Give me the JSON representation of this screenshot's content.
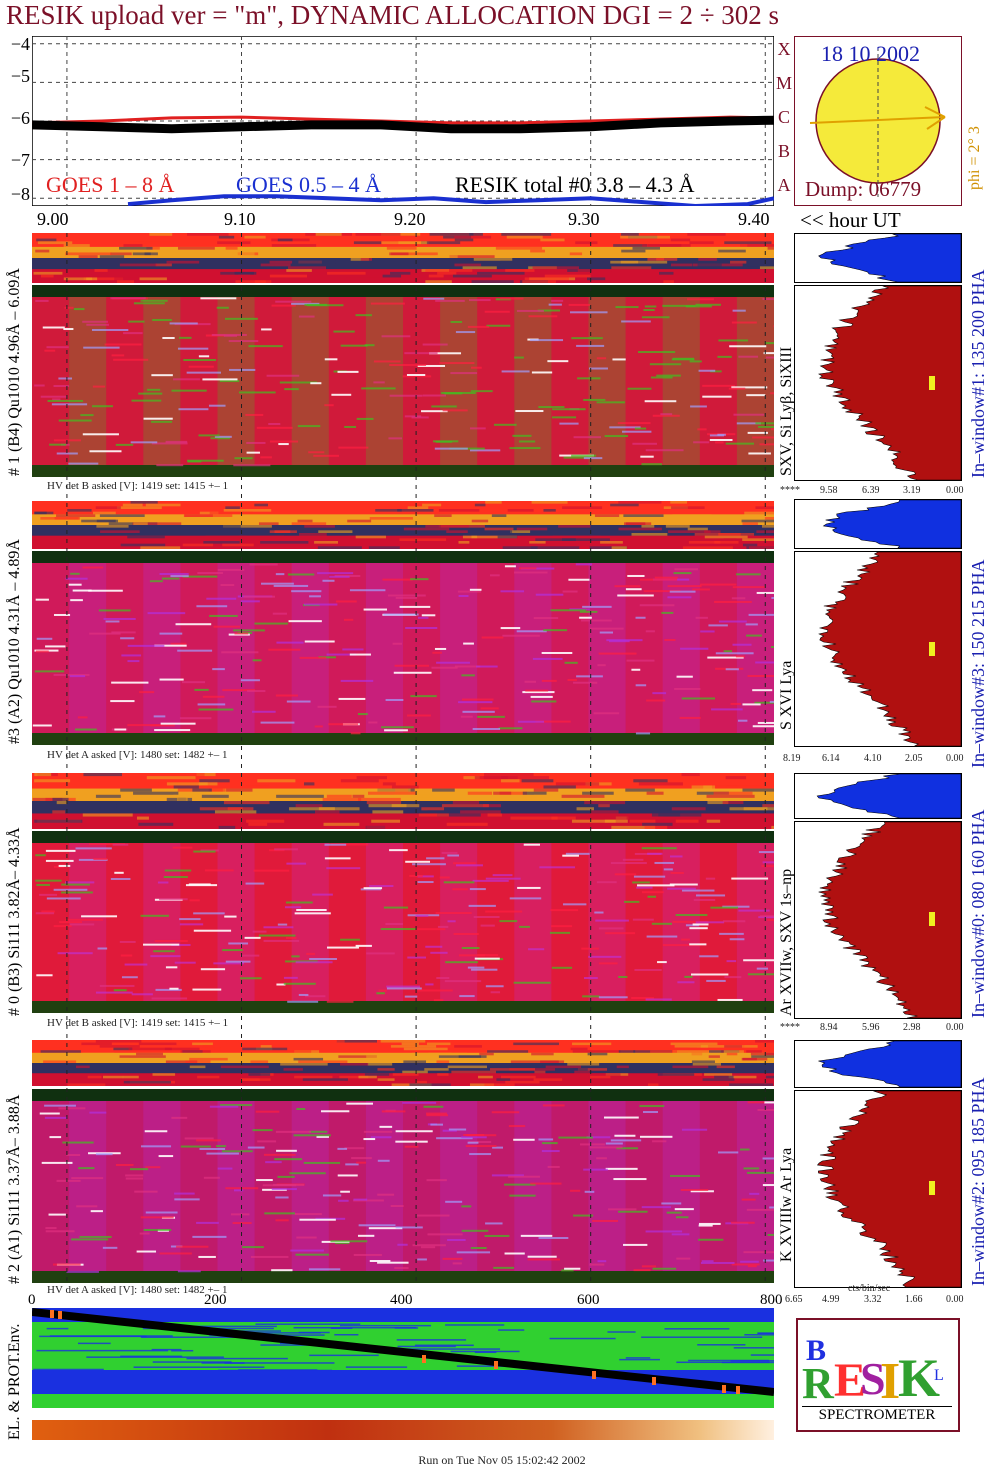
{
  "title": "RESIK upload ver = \"m\", DYNAMIC ALLOCATION  DGI =   2 ÷ 302 s",
  "sun_panel": {
    "date": "18 10 2002",
    "dump": "Dump: 06779",
    "phi": "phi =  2°  3",
    "side_letters": [
      "A",
      "B",
      "C",
      "M",
      "X"
    ],
    "colors": {
      "disk": "#f5ea3a",
      "border": "#7b1028",
      "arrow": "#e0a000"
    }
  },
  "lightcurve": {
    "legend": [
      "GOES 1 – 8 Å",
      "GOES 0.5 – 4 Å",
      "RESIK total #0  3.8 – 4.3 Å"
    ],
    "hour_label": "<< hour UT"
  },
  "chart_data": [
    {
      "type": "line",
      "title": "",
      "ylabel": "",
      "xlabel": "<< hour UT",
      "xlim": [
        8.98,
        9.405
      ],
      "ylim": [
        -8.2,
        -3.8
      ],
      "yticks": [
        "−4",
        "−5",
        "−6",
        "−7",
        "−8"
      ],
      "xticks": [
        "9.00",
        "9.10",
        "9.20",
        "9.30",
        "9.40"
      ],
      "xtick_values": [
        9.0,
        9.1,
        9.2,
        9.3,
        9.4
      ],
      "grid": true,
      "series": [
        {
          "name": "GOES 1 – 8 Å",
          "color": "#e02020",
          "x": [
            8.98,
            9.02,
            9.06,
            9.1,
            9.14,
            9.18,
            9.22,
            9.26,
            9.3,
            9.34,
            9.38,
            9.405
          ],
          "y": [
            -6.05,
            -6.0,
            -5.92,
            -5.9,
            -5.95,
            -6.0,
            -6.05,
            -6.05,
            -6.0,
            -5.95,
            -5.9,
            -5.92
          ]
        },
        {
          "name": "GOES 0.5 – 4 Å",
          "color": "#1a30d0",
          "x": [
            9.035,
            9.06,
            9.09,
            9.12,
            9.15,
            9.18,
            9.21,
            9.24,
            9.27,
            9.3,
            9.33,
            9.36,
            9.39,
            9.405
          ],
          "y": [
            -8.15,
            -8.05,
            -7.95,
            -7.95,
            -8.0,
            -8.05,
            -8.0,
            -8.1,
            -8.05,
            -8.0,
            -8.1,
            -8.2,
            -8.15,
            -8.0
          ]
        },
        {
          "name": "RESIK total #0  3.8 – 4.3 Å",
          "color": "#000000",
          "x": [
            8.98,
            9.02,
            9.06,
            9.1,
            9.14,
            9.18,
            9.22,
            9.26,
            9.3,
            9.34,
            9.38,
            9.405
          ],
          "y": [
            -6.1,
            -6.15,
            -6.2,
            -6.15,
            -6.1,
            -6.1,
            -6.2,
            -6.2,
            -6.15,
            -6.05,
            -6.0,
            -5.98
          ]
        }
      ]
    },
    {
      "type": "heatmap",
      "name": "detector #1",
      "label": "# 1 (B4) Qu1010 4.96Å – 6.09Å",
      "lines": "SXV, Si Lyβ, SiXIII",
      "window": "In–window#1:  135 200 PHA",
      "hv": "HV det B asked [V]:  1419 set:  1415  +–    1",
      "hist_ticks": [
        "****",
        "9.58",
        "6.39",
        "3.19",
        "0.00"
      ],
      "base_color": "#d01a3a",
      "accent_color": "#40c020"
    },
    {
      "type": "heatmap",
      "name": "detector #3",
      "label": "#3 (A2) Qu1010  4.31Å – 4.89Å",
      "lines": "S XVI Lya",
      "window": "In–window#3:  150 215 PHA",
      "hv": "HV det A asked [V]:  1480 set:  1482  +–    1",
      "hist_ticks": [
        "8.19",
        "6.14",
        "4.10",
        "2.05",
        "0.00"
      ],
      "base_color": "#d01a5a",
      "accent_color": "#b030e0"
    },
    {
      "type": "heatmap",
      "name": "detector #0",
      "label": "# 0 (B3) Si111  3.82Å– 4.33Å",
      "lines": "Ar XVIIw,  SXV 1s–np",
      "window": "In–window#0:  080 160 PHA",
      "hv": "HV det B asked [V]:  1419 set:  1415  +–    1",
      "hist_ticks": [
        "****",
        "8.94",
        "5.96",
        "2.98",
        "0.00"
      ],
      "base_color": "#e01a3a",
      "accent_color": "#c030d0"
    },
    {
      "type": "heatmap",
      "name": "detector #2",
      "label": "# 2 (A1) Si111  3.37Å– 3.88Å",
      "lines": "K XVIIIw  Ar Lya",
      "window": "In–window#2:  095 185 PHA",
      "hv": "HV det A asked [V]:  1480 set:  1482  +–    1",
      "hist_ticks": [
        "6.65",
        "4.99",
        "3.32",
        "1.66",
        "0.00"
      ],
      "hist_xlabel": "cts/bin/sec",
      "base_color": "#c01a6a",
      "accent_color": "#b030e0"
    }
  ],
  "bottom": {
    "xticks": [
      "0",
      "200",
      "400",
      "600",
      "800"
    ],
    "env_label": "EL. & PROT.Env.",
    "footer": "Run on Tue Nov 05 15:02:42 2002"
  },
  "logo": {
    "text": "SPECTROMETER",
    "colors": [
      "#ff3030",
      "#2030e0",
      "#e0a000",
      "#30a030",
      "#a020a0"
    ]
  }
}
